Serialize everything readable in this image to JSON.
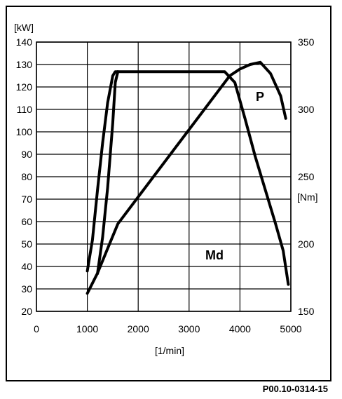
{
  "chart_data": {
    "type": "line",
    "x_axis": {
      "label": "[1/min]",
      "range": [
        0,
        5000
      ],
      "ticks": [
        0,
        1000,
        2000,
        3000,
        4000,
        5000
      ],
      "tick_labels": [
        "0",
        "1000",
        "2000",
        "3000",
        "4000",
        "5000"
      ]
    },
    "y_axis_left": {
      "unit": "[kW]",
      "range": [
        20,
        140
      ],
      "ticks": [
        20,
        30,
        40,
        50,
        60,
        70,
        80,
        90,
        100,
        110,
        120,
        130,
        140
      ]
    },
    "y_axis_right": {
      "unit": "[Nm]",
      "range": [
        150,
        350
      ],
      "ticks": [
        150,
        200,
        250,
        300,
        350
      ]
    },
    "grid": true,
    "series": [
      {
        "name": "P",
        "axis": "left",
        "points": [
          [
            1000,
            28
          ],
          [
            1200,
            37
          ],
          [
            1400,
            48
          ],
          [
            1600,
            59
          ],
          [
            2000,
            71
          ],
          [
            2500,
            86
          ],
          [
            3000,
            101
          ],
          [
            3500,
            116
          ],
          [
            3800,
            125
          ],
          [
            4000,
            128
          ],
          [
            4200,
            130
          ],
          [
            4400,
            131
          ],
          [
            4600,
            126
          ],
          [
            4800,
            116
          ],
          [
            4900,
            106
          ]
        ]
      },
      {
        "name": "Md",
        "axis": "right",
        "points": [
          [
            1000,
            180
          ],
          [
            1100,
            203
          ],
          [
            1200,
            240
          ],
          [
            1300,
            275
          ],
          [
            1400,
            305
          ],
          [
            1500,
            325
          ],
          [
            1550,
            328
          ],
          [
            2000,
            328
          ],
          [
            3000,
            328
          ],
          [
            3700,
            328
          ],
          [
            3900,
            320
          ],
          [
            4100,
            293
          ],
          [
            4300,
            265
          ],
          [
            4500,
            240
          ],
          [
            4700,
            215
          ],
          [
            4850,
            195
          ],
          [
            4950,
            170
          ]
        ]
      },
      {
        "name": "Md",
        "axis": "right",
        "points": [
          [
            1200,
            178
          ],
          [
            1300,
            205
          ],
          [
            1400,
            242
          ],
          [
            1500,
            290
          ],
          [
            1550,
            320
          ],
          [
            1600,
            328
          ]
        ]
      }
    ],
    "series_labels": {
      "p": "P",
      "md": "Md"
    }
  },
  "footer_code": "P00.10-0314-15"
}
